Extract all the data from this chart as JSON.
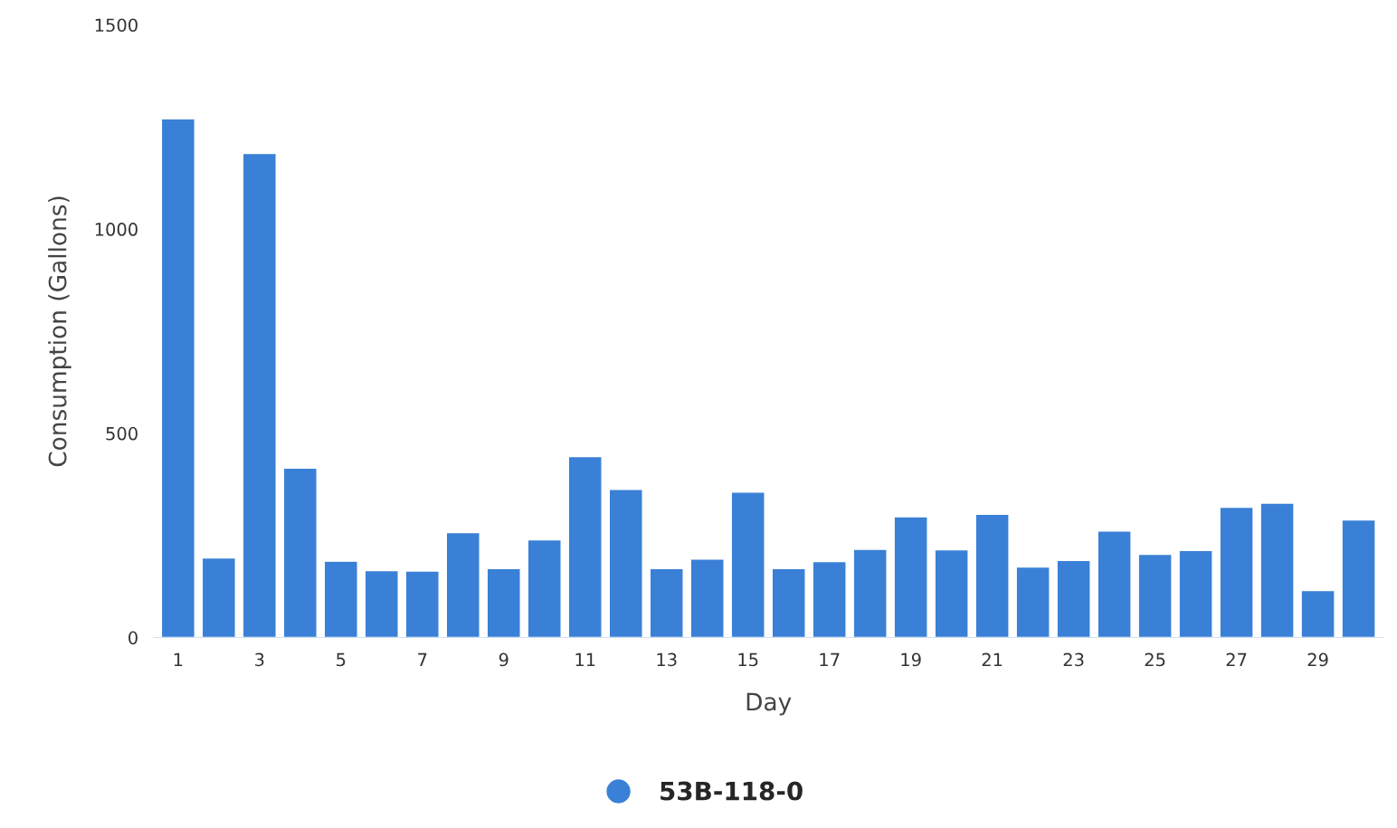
{
  "chart_data": {
    "type": "bar",
    "xlabel": "Day",
    "ylabel": "Consumption (Gallons)",
    "categories": [
      "1",
      null,
      "3",
      null,
      "5",
      null,
      "7",
      null,
      "9",
      null,
      "11",
      null,
      "13",
      null,
      "15",
      null,
      "17",
      null,
      "19",
      null,
      "21",
      null,
      "23",
      null,
      "25",
      null,
      "27",
      null,
      "29",
      null
    ],
    "series": [
      {
        "name": "53B-118-0",
        "color": "#3a80d6",
        "values": [
          1270,
          195,
          1185,
          415,
          187,
          164,
          163,
          257,
          169,
          239,
          443,
          363,
          169,
          192,
          356,
          169,
          186,
          216,
          296,
          215,
          302,
          173,
          189,
          261,
          204,
          213,
          319,
          329,
          115,
          288
        ]
      }
    ],
    "ylim": [
      0,
      1500
    ],
    "yticks": [
      0,
      500,
      1000,
      1500
    ],
    "grid": false,
    "legend": "bottom"
  }
}
